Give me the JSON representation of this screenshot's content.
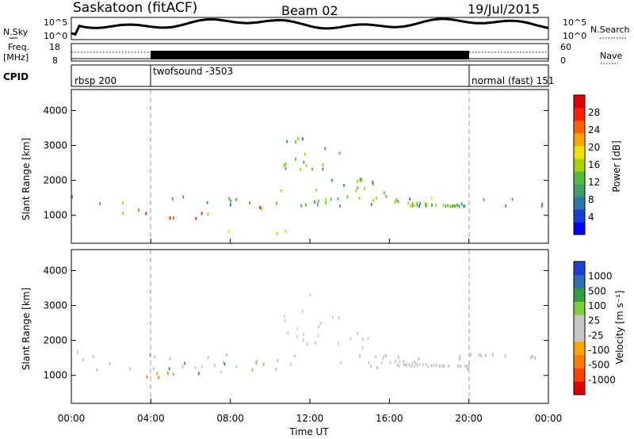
{
  "header": {
    "station": "Saskatoon (fitACF)",
    "beam": "Beam 02",
    "date": "19/Jul/2015"
  },
  "sky_panel": {
    "left_label": "N.Sky",
    "right_label": "N.Search",
    "left_ticks": [
      "10^5",
      "10^0"
    ],
    "right_ticks": [
      "10^5",
      "10^0"
    ]
  },
  "freq_panel": {
    "left_label_1": "Freq.",
    "left_label_2": "[MHz]",
    "right_label": "Nave",
    "left_ticks": [
      "18",
      "8"
    ],
    "right_ticks": [
      "60",
      "0"
    ]
  },
  "cpid_panel": {
    "label": "CPID",
    "segments": [
      {
        "text": "rbsp 200",
        "start_hour": 0
      },
      {
        "text": "twofsound -3503",
        "start_hour": 4
      },
      {
        "text": "normal (fast) 151",
        "start_hour": 20
      }
    ]
  },
  "x_axis": {
    "label": "Time UT",
    "ticks": [
      "00:00",
      "04:00",
      "08:00",
      "12:00",
      "16:00",
      "20:00",
      "00:00"
    ]
  },
  "power_panel": {
    "ylabel": "Slant Range [km]",
    "yticks": [
      "1000",
      "2000",
      "3000",
      "4000"
    ],
    "colorbar_label": "Power [dB]",
    "colorbar_ticks": [
      "4",
      "8",
      "12",
      "16",
      "20",
      "24",
      "28"
    ]
  },
  "velocity_panel": {
    "ylabel": "Slant Range [km]",
    "yticks": [
      "1000",
      "2000",
      "3000",
      "4000"
    ],
    "colorbar_label": "Velocity [m s⁻¹]",
    "colorbar_ticks": [
      "1000",
      "500",
      "100",
      "25",
      "-25",
      "-100",
      "-500",
      "-1000"
    ]
  },
  "colors": {
    "power_scale": [
      "#0000ff",
      "#1a3fd0",
      "#2b78a0",
      "#3f9f6a",
      "#55bb3a",
      "#a8d200",
      "#f0e000",
      "#ffa500",
      "#ff6000",
      "#ff2000",
      "#e00000"
    ],
    "velocity_scale": [
      "#e00000",
      "#ff4000",
      "#ff7a00",
      "#ffa500",
      "#c8c8c8",
      "#c8c8c8",
      "#7fcf3a",
      "#2f9f3f",
      "#2f6fb0",
      "#1f3fd0"
    ],
    "ground_scatter": "#bdbdbd"
  },
  "chart_data": {
    "type": "heatmap",
    "title": "Saskatoon (fitACF)  Beam 02  19/Jul/2015",
    "xlabel": "Time UT",
    "xlim_hours": [
      0,
      24
    ],
    "ylim_km": [
      200,
      4600
    ],
    "power_db": {
      "range": [
        0,
        32
      ],
      "regions": [
        {
          "desc": "band",
          "t": [
            0,
            24
          ],
          "r": [
            1300,
            1600
          ],
          "db": 10
        },
        {
          "desc": "patch",
          "t": [
            2.2,
            6.8
          ],
          "r": [
            900,
            1400
          ],
          "db": 26
        },
        {
          "desc": "patch",
          "t": [
            6.8,
            9.8
          ],
          "r": [
            1000,
            1300
          ],
          "db": 26
        },
        {
          "desc": "arc",
          "t": [
            10.5,
            20
          ],
          "r": [
            1300,
            3400
          ],
          "db": 12
        },
        {
          "desc": "band",
          "t": [
            16,
            24
          ],
          "r": [
            1300,
            1550
          ],
          "db": 14
        },
        {
          "desc": "low",
          "t": [
            7.5,
            11.5
          ],
          "r": [
            450,
            650
          ],
          "db": 20
        }
      ]
    },
    "velocity_ms": {
      "range": [
        -1000,
        1000
      ],
      "regions": [
        {
          "desc": "ground_scatter",
          "t": [
            0,
            24
          ],
          "r": [
            1200,
            1700
          ],
          "v": 0
        },
        {
          "desc": "patch",
          "t": [
            2.5,
            5.8
          ],
          "r": [
            800,
            1200
          ],
          "v": -100
        },
        {
          "desc": "patch",
          "t": [
            4.2,
            10
          ],
          "r": [
            1050,
            1600
          ],
          "v": 100
        },
        {
          "desc": "arc",
          "t": [
            10.5,
            20
          ],
          "r": [
            1300,
            3400
          ],
          "v": 0
        }
      ]
    }
  }
}
